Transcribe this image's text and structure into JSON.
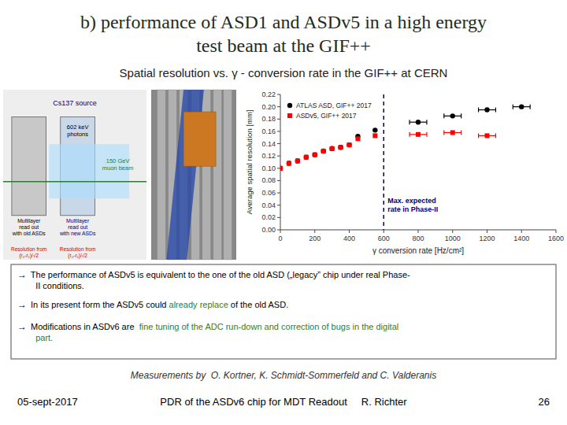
{
  "chart_data": {
    "type": "scatter",
    "title": "b) performance of ASD1 and ASDv5 in a high energy\ntest beam at the GIF++",
    "subtitle": "Spatial resolution vs. γ - conversion rate in the GIF++ at CERN",
    "x_label": "γ conversion rate [Hz/cm²]",
    "y_label": "Average spatial resolution [mm]",
    "xlim": [
      0,
      1600
    ],
    "xticks": [
      0,
      200,
      400,
      600,
      800,
      1000,
      1200,
      1400,
      1600
    ],
    "ylim": [
      0,
      0.22
    ],
    "yticks": [
      {
        "value": 0,
        "label": "0.00"
      },
      {
        "value": 0.02,
        "label": "0.02"
      },
      {
        "value": 0.04,
        "label": "0.04"
      },
      {
        "value": 0.06,
        "label": "0.06"
      },
      {
        "value": 0.08,
        "label": "0.08"
      },
      {
        "value": 0.1,
        "label": "0.10"
      },
      {
        "value": 0.12,
        "label": "0.12"
      },
      {
        "value": 0.14,
        "label": "0.14"
      },
      {
        "value": 0.16,
        "label": "0.16"
      },
      {
        "value": 0.18,
        "label": "0.18"
      },
      {
        "value": 0.2,
        "label": "0.20"
      },
      {
        "value": 0.22,
        "label": "0.22"
      }
    ],
    "grid": false,
    "legend": "upper left",
    "series": [
      {
        "name": "ATLAS ASD, GIF++ 2017",
        "color": "#000000",
        "marker": "circle",
        "x": [
          0,
          50,
          100,
          150,
          200,
          250,
          300,
          350,
          400,
          450,
          550,
          800,
          1000,
          1200,
          1400
        ],
        "values": [
          0.1,
          0.108,
          0.112,
          0.118,
          0.122,
          0.128,
          0.132,
          0.134,
          0.138,
          0.152,
          0.162,
          0.175,
          0.185,
          0.195,
          0.2
        ],
        "x_errors": [
          null,
          null,
          null,
          null,
          null,
          null,
          null,
          null,
          null,
          null,
          null,
          50,
          50,
          50,
          50
        ]
      },
      {
        "name": "ASDv5, GIF++ 2017",
        "color": "#ff0000",
        "marker": "square",
        "x": [
          0,
          50,
          100,
          150,
          200,
          250,
          300,
          350,
          400,
          450,
          550,
          800,
          1000,
          1200
        ],
        "values": [
          0.1,
          0.108,
          0.112,
          0.118,
          0.122,
          0.128,
          0.132,
          0.134,
          0.138,
          0.148,
          0.153,
          0.155,
          0.158,
          0.153
        ],
        "x_errors": [
          null,
          null,
          null,
          null,
          null,
          null,
          null,
          null,
          null,
          null,
          null,
          50,
          50,
          50
        ]
      }
    ],
    "annotations": [
      {
        "text": "Max. expected\nrate in Phase-II",
        "x": 600,
        "color": "#000080"
      },
      {
        "text": "Cs137 source",
        "color": "#000080"
      },
      {
        "text": "602 keV\nphotons",
        "color": "#000000"
      },
      {
        "text": "150 GeV\nmuon beam",
        "color": "#2e7d32"
      },
      {
        "text": "Multilayer\nread out\nwith old ASDs",
        "color": "#000000"
      },
      {
        "text": "Multilayer\nread out\nwith new ASDs",
        "color": "#000080"
      },
      {
        "text": "Resolution from\n(r₀-r₁)/√2",
        "color": "#cc0000"
      },
      {
        "text": "Resolution from\n(r₀-r₁)/√2",
        "color": "#cc0000"
      },
      {
        "parts": [
          {
            "text": "→",
            "color": "#000000"
          },
          {
            "text": " The performance of ASDv5 is equivalent to the one of the old ASD („legacy” chip under real Phase-\n   II conditions.",
            "color": "#000000"
          }
        ]
      },
      {
        "parts": [
          {
            "text": "→",
            "color": "#000000"
          },
          {
            "text": " In its present form the ASDv5 could ",
            "color": "#000000"
          },
          {
            "text": "already replace",
            "color": "#2e7d32"
          },
          {
            "text": " of the old ASD.",
            "color": "#000000"
          }
        ]
      },
      {
        "parts": [
          {
            "text": "→",
            "color": "#000000"
          },
          {
            "text": " Modifications in ASDv6 are  ",
            "color": "#000000"
          },
          {
            "text": "fine tuning of the ADC run-down and correction of bugs in the digital\n   part.",
            "color": "#2e7d32"
          }
        ]
      },
      {
        "text": "Measurements by  O. Kortner, K. Schmidt-Sommerfeld and C. Valderanis",
        "color": "#333333"
      },
      {
        "text": "05-sept-2017",
        "color": "#000000"
      },
      {
        "text": "PDR of the ASDv6 chip for MDT Readout     R. Richter",
        "color": "#000000"
      },
      {
        "text": "26",
        "color": "#000000"
      }
    ]
  }
}
